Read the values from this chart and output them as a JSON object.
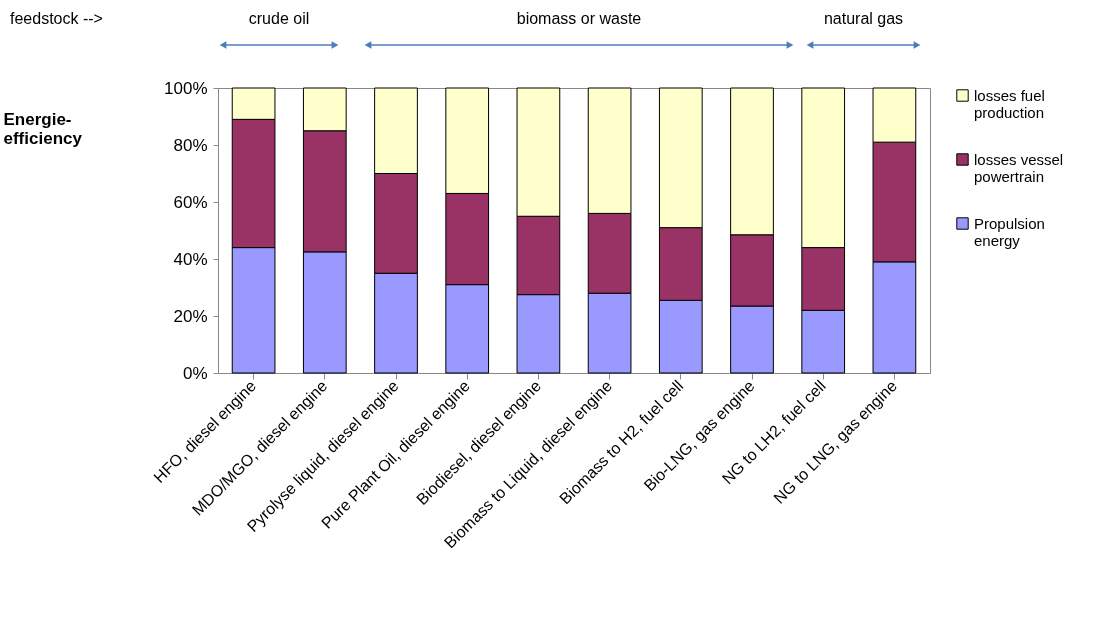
{
  "chart_data": {
    "type": "bar",
    "stacked": true,
    "ylabel": "Energie-efficiency",
    "annotations": [
      "feedstock  -->",
      "crude oil",
      "biomass  or  waste",
      "natural gas"
    ],
    "categories": [
      "HFO, diesel engine",
      "MDO/MGO, diesel engine",
      "Pyrolyse liquid, diesel engine",
      "Pure Plant Oil, diesel engine",
      "Biodiesel, diesel engine",
      "Biomass to Liquid, diesel engine",
      "Biomass to H2, fuel cell",
      "Bio-LNG, gas engine",
      "NG to LH2, fuel cell",
      "NG to LNG, gas engine"
    ],
    "series": [
      {
        "name": "Propulsion energy",
        "color": "#9999ff",
        "values": [
          44,
          42.5,
          35,
          31,
          27.5,
          28,
          25.5,
          23.5,
          22,
          39
        ]
      },
      {
        "name": "losses vessel powertrain",
        "color": "#993366",
        "values": [
          45,
          42.5,
          35,
          32,
          27.5,
          28,
          25.5,
          25,
          22,
          42
        ]
      },
      {
        "name": "losses fuel production",
        "color": "#ffffcc",
        "values": [
          11,
          15,
          30,
          37,
          45,
          44,
          49,
          51.5,
          56,
          19
        ]
      }
    ],
    "ylim": [
      0,
      100
    ],
    "yticks": [
      {
        "value": 0,
        "label": "0%"
      },
      {
        "value": 20,
        "label": "20%"
      },
      {
        "value": 40,
        "label": "40%"
      },
      {
        "value": 60,
        "label": "60%"
      },
      {
        "value": 80,
        "label": "80%"
      },
      {
        "value": 100,
        "label": "100%"
      }
    ],
    "grid": false,
    "legend": "right"
  }
}
